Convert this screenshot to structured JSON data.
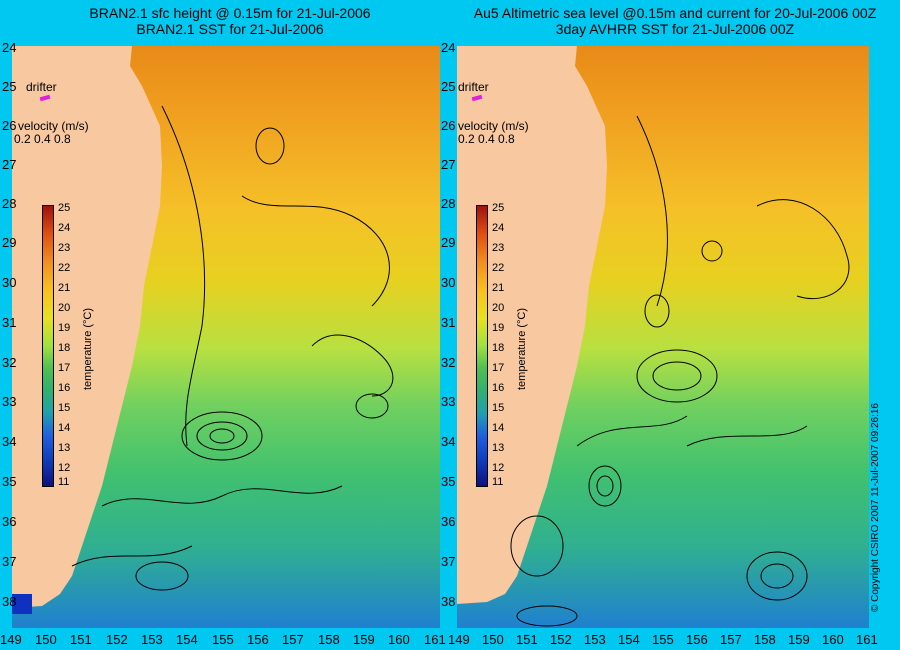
{
  "left_panel": {
    "title_line1": "BRAN2.1 sfc height @ 0.15m for 21-Jul-2006",
    "title_line2": "BRAN2.1 SST for 21-Jul-2006"
  },
  "right_panel": {
    "title_line1": "Au5 Altimetric sea level  @0.15m and current for 20-Jul-2006 00Z",
    "title_line2": "3day AVHRR SST for 21-Jul-2006 00Z"
  },
  "y_ticks": [
    "24",
    "25",
    "26",
    "27",
    "28",
    "29",
    "30",
    "31",
    "32",
    "33",
    "34",
    "35",
    "36",
    "37",
    "38"
  ],
  "x_ticks": [
    "149",
    "150",
    "151",
    "152",
    "153",
    "154",
    "155",
    "156",
    "157",
    "158",
    "159",
    "160",
    "161"
  ],
  "drifter_label": "drifter",
  "velocity_label": "velocity (m/s)",
  "velocity_ticks": "0.2 0.4 0.8",
  "colorbar": {
    "title": "temperature (°C)",
    "labels": [
      "25",
      "24",
      "23",
      "22",
      "21",
      "20",
      "19",
      "18",
      "17",
      "16",
      "15",
      "14",
      "13",
      "12",
      "11"
    ]
  },
  "copyright": "© Copyright CSIRO 2007   11-Jul-2007 09:26:16",
  "colors": {
    "background": "#00c8f0",
    "land": "#f8c8a0",
    "drifter": "#e020e0"
  }
}
